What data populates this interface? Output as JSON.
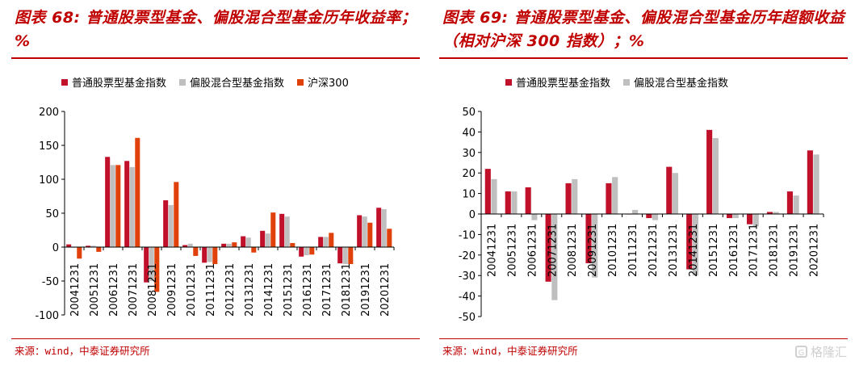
{
  "colors": {
    "series_red": "#c0102a",
    "series_gray": "#bfbfbf",
    "series_orange": "#e0400a",
    "accent": "#c00000"
  },
  "left": {
    "title": "图表 68: 普通股票型基金、偏股混合型基金历年收益率；%",
    "source": "来源：wind，中泰证券研究所"
  },
  "right": {
    "title": "图表 69: 普通股票型基金、偏股混合型基金历年超额收益（相对沪深 300 指数）；%",
    "source": "来源：wind，中泰证券研究所"
  },
  "watermark": {
    "text": "格隆汇",
    "icon": "g-logo-icon"
  },
  "chart_data": [
    {
      "type": "bar",
      "categories": [
        "20041231",
        "20051231",
        "20061231",
        "20071231",
        "20081231",
        "20091231",
        "20101231",
        "20111231",
        "20121231",
        "20131231",
        "20141231",
        "20151231",
        "20161231",
        "20171231",
        "20181231",
        "20191231",
        "20201231"
      ],
      "ylim": [
        -100,
        200
      ],
      "yticks": [
        -100,
        -50,
        0,
        50,
        100,
        150,
        200
      ],
      "grid": false,
      "legend_position": "top",
      "series": [
        {
          "name": "普通股票型基金指数",
          "values": [
            4,
            2,
            133,
            127,
            -52,
            69,
            3,
            -23,
            5,
            16,
            24,
            49,
            -14,
            15,
            -24,
            47,
            58
          ]
        },
        {
          "name": "偏股混合型基金指数",
          "values": [
            -1,
            2,
            121,
            118,
            -50,
            62,
            5,
            -22,
            5,
            14,
            20,
            45,
            -12,
            15,
            -25,
            45,
            56
          ]
        },
        {
          "name": "沪深300",
          "values": [
            -17,
            -7,
            121,
            161,
            -66,
            96,
            -13,
            -25,
            7,
            -8,
            51,
            6,
            -11,
            21,
            -25,
            36,
            27
          ]
        }
      ]
    },
    {
      "type": "bar",
      "categories": [
        "20041231",
        "20051231",
        "20061231",
        "20071231",
        "20081231",
        "20091231",
        "20101231",
        "20111231",
        "20121231",
        "20131231",
        "20141231",
        "20151231",
        "20161231",
        "20171231",
        "20181231",
        "20191231",
        "20201231"
      ],
      "ylim": [
        -50,
        50
      ],
      "yticks": [
        -50,
        -40,
        -30,
        -20,
        -10,
        0,
        10,
        20,
        30,
        40,
        50
      ],
      "grid": false,
      "legend_position": "top",
      "series": [
        {
          "name": "普通股票型基金指数",
          "values": [
            22,
            11,
            13,
            -33,
            15,
            -24,
            15,
            0,
            -2,
            23,
            -27,
            41,
            -2,
            -5,
            1,
            11,
            31
          ]
        },
        {
          "name": "偏股混合型基金指数",
          "values": [
            17,
            11,
            -3,
            -42,
            17,
            -31,
            18,
            2,
            -3,
            20,
            -30,
            37,
            -2,
            -6,
            1,
            9,
            29
          ]
        }
      ]
    }
  ]
}
